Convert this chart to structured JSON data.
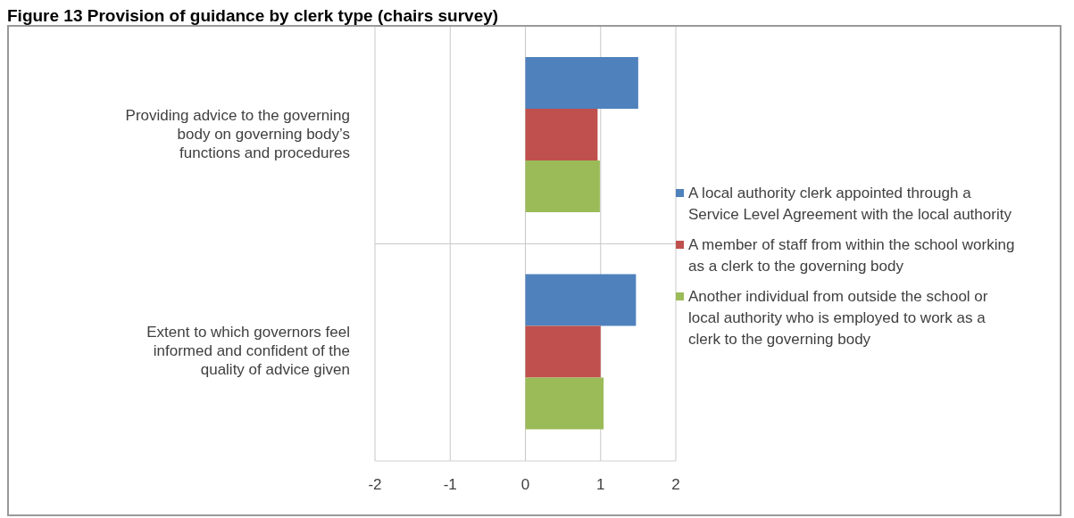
{
  "chart_data": {
    "type": "bar",
    "orientation": "horizontal",
    "title": "Figure 13 Provision of guidance by clerk type (chairs survey)",
    "categories": [
      "Providing advice to the governing body on governing body’s functions and procedures",
      "Extent to which governors feel informed and confident of the quality of advice given"
    ],
    "series": [
      {
        "name": "A local authority clerk appointed through a Service Level Agreement with the local authority",
        "color": "#4f81bd",
        "values": [
          1.5,
          1.47
        ]
      },
      {
        "name": "A member of staff from within the school working as a clerk to the governing body",
        "color": "#c0504d",
        "values": [
          0.96,
          1.0
        ]
      },
      {
        "name": "Another individual from outside the school or local authority who is employed to work as a clerk to the governing body",
        "color": "#9bbb59",
        "values": [
          0.99,
          1.04
        ]
      }
    ],
    "xlim": [
      -2,
      2
    ],
    "xticks": [
      -2,
      -1,
      0,
      1,
      2
    ],
    "grid": true,
    "legend": "right"
  }
}
